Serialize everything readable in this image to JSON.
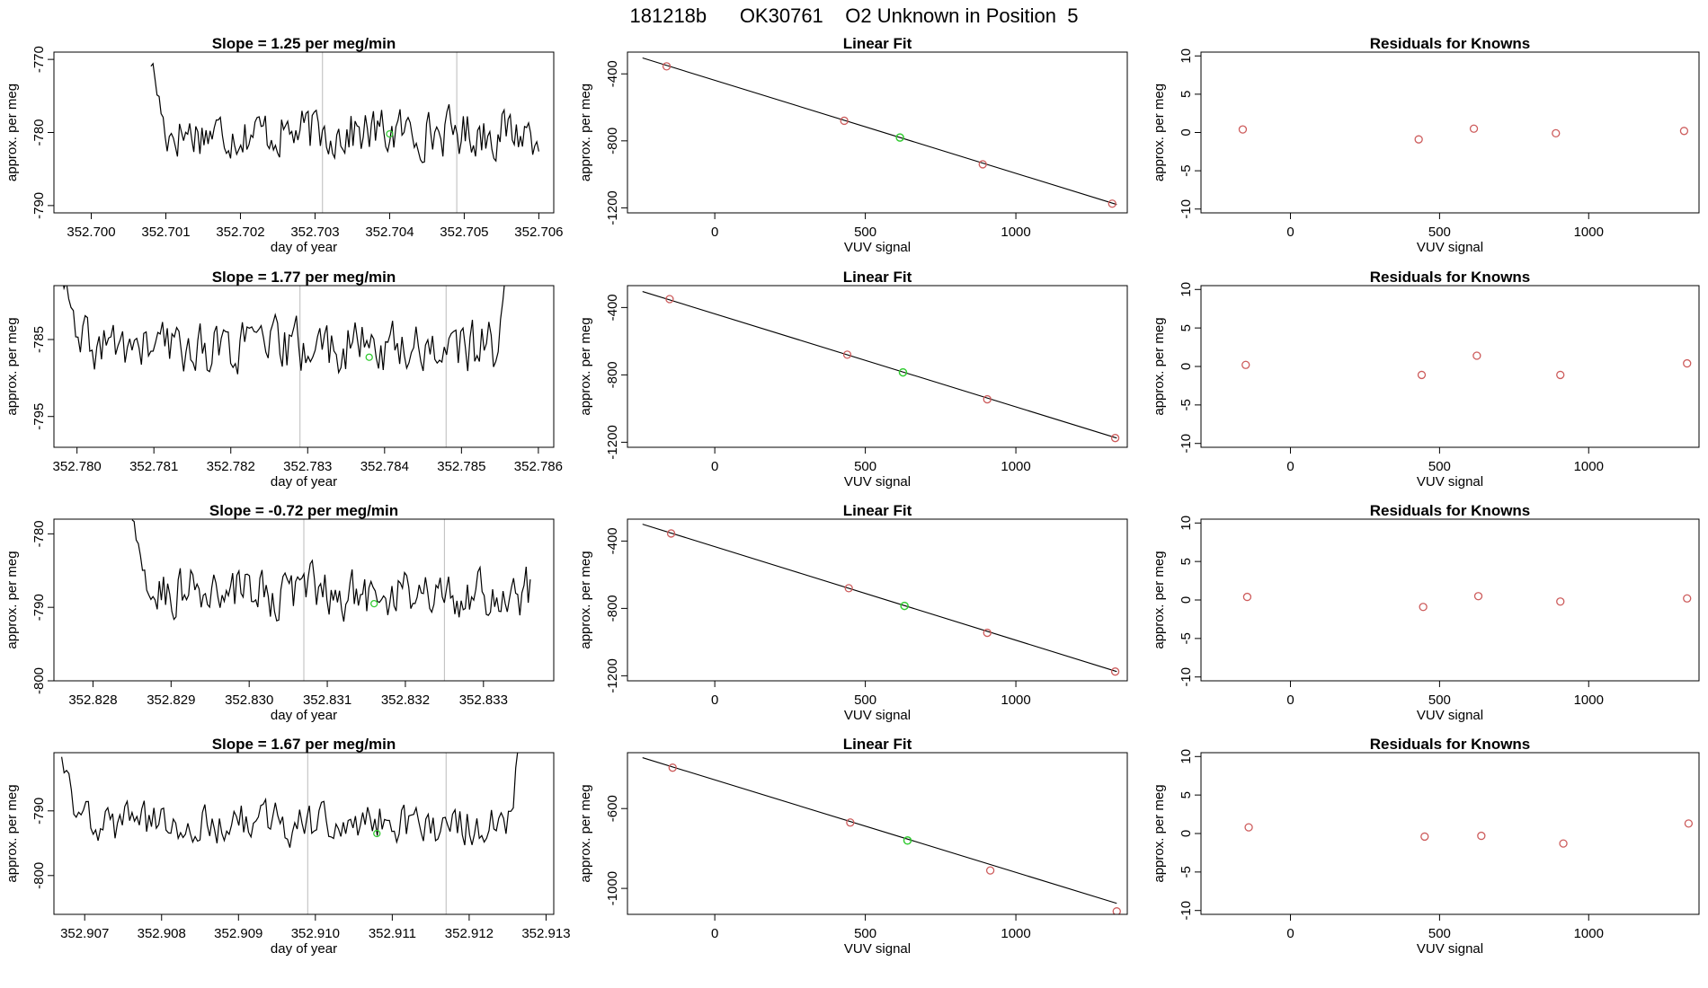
{
  "page_title": "181218b      OK30761    O2 Unknown in Position  5",
  "colors": {
    "line": "#000000",
    "known_marker": "#cd5c5c",
    "unknown_marker": "#33cc33",
    "event_line": "#bbbbbb",
    "frame": "#000000"
  },
  "chart_data": [
    {
      "panel": "timeseries",
      "row": 0,
      "type": "line",
      "title": "Slope =  1.25  per meg/min",
      "xlabel": "day of year",
      "ylabel": "approx. per meg",
      "xlim": [
        352.6995,
        352.7062
      ],
      "ylim": [
        -791,
        -769
      ],
      "xticks": [
        "352.700",
        "352.701",
        "352.702",
        "352.703",
        "352.704",
        "352.705",
        "352.706"
      ],
      "yticks": [
        "-790",
        "-780",
        "-770"
      ],
      "events": [
        352.7031,
        352.7049
      ],
      "x_range": [
        352.7008,
        352.706
      ],
      "y_base": -780,
      "noise_amp": 3.0,
      "unknown_point": [
        352.704,
        -780.2
      ]
    },
    {
      "panel": "fit",
      "row": 0,
      "type": "scatter",
      "title": "Linear Fit",
      "xlabel": "VUV signal",
      "ylabel": "approx. per meg",
      "xlim": [
        -290,
        1370
      ],
      "ylim": [
        -1230,
        -270
      ],
      "xticks": [
        "0",
        "500",
        "1000"
      ],
      "yticks": [
        "-400",
        "-800",
        "-1200"
      ],
      "fit_line": {
        "x": [
          -240,
          1335
        ],
        "y": [
          -305,
          -1180
        ]
      },
      "knowns": {
        "x": [
          -160,
          430,
          890,
          1320
        ],
        "y": [
          -355,
          -680,
          -940,
          -1175
        ]
      },
      "unknown": {
        "x": [
          615
        ],
        "y": [
          -780
        ]
      }
    },
    {
      "panel": "residuals",
      "row": 0,
      "type": "scatter",
      "title": "Residuals for Knowns",
      "xlabel": "VUV signal",
      "ylabel": "approx. per meg",
      "xlim": [
        -300,
        1370
      ],
      "ylim": [
        -10.5,
        10.5
      ],
      "xticks": [
        "0",
        "500",
        "1000"
      ],
      "yticks": [
        "10",
        "5",
        "0",
        "-5",
        "-10"
      ],
      "points": {
        "x": [
          -160,
          430,
          615,
          890,
          1320
        ],
        "y": [
          0.4,
          -0.9,
          0.5,
          -0.1,
          0.2
        ]
      }
    },
    {
      "panel": "timeseries",
      "row": 1,
      "type": "line",
      "title": "Slope =  1.77  per meg/min",
      "xlabel": "day of year",
      "ylabel": "approx. per meg",
      "xlim": [
        352.7797,
        352.7862
      ],
      "ylim": [
        -799,
        -778
      ],
      "xticks": [
        "352.780",
        "352.781",
        "352.782",
        "352.783",
        "352.784",
        "352.785",
        "352.786"
      ],
      "yticks": [
        "-795",
        "-785"
      ],
      "events": [
        352.7829,
        352.7848
      ],
      "x_range": [
        352.7798,
        352.7856
      ],
      "y_base": -786,
      "noise_amp": 3.2,
      "unknown_point": [
        352.7838,
        -787.3
      ]
    },
    {
      "panel": "fit",
      "row": 1,
      "type": "scatter",
      "title": "Linear Fit",
      "xlabel": "VUV signal",
      "ylabel": "approx. per meg",
      "xlim": [
        -290,
        1370
      ],
      "ylim": [
        -1230,
        -270
      ],
      "xticks": [
        "0",
        "500",
        "1000"
      ],
      "yticks": [
        "-400",
        "-800",
        "-1200"
      ],
      "fit_line": {
        "x": [
          -240,
          1335
        ],
        "y": [
          -305,
          -1175
        ]
      },
      "knowns": {
        "x": [
          -150,
          440,
          905,
          1330
        ],
        "y": [
          -350,
          -680,
          -945,
          -1175
        ]
      },
      "unknown": {
        "x": [
          625
        ],
        "y": [
          -785
        ]
      }
    },
    {
      "panel": "residuals",
      "row": 1,
      "type": "scatter",
      "title": "Residuals for Knowns",
      "xlabel": "VUV signal",
      "ylabel": "approx. per meg",
      "xlim": [
        -300,
        1370
      ],
      "ylim": [
        -10.5,
        10.5
      ],
      "xticks": [
        "0",
        "500",
        "1000"
      ],
      "yticks": [
        "10",
        "5",
        "0",
        "-5",
        "-10"
      ],
      "points": {
        "x": [
          -150,
          440,
          625,
          905,
          1330
        ],
        "y": [
          0.2,
          -1.1,
          1.4,
          -1.1,
          0.4
        ]
      }
    },
    {
      "panel": "timeseries",
      "row": 2,
      "type": "line",
      "title": "Slope =  -0.72  per meg/min",
      "xlabel": "day of year",
      "ylabel": "approx. per meg",
      "xlim": [
        352.8275,
        352.8339
      ],
      "ylim": [
        -800,
        -778
      ],
      "xticks": [
        "352.828",
        "352.829",
        "352.830",
        "352.831",
        "352.832",
        "352.833"
      ],
      "yticks": [
        "-800",
        "-790",
        "-780"
      ],
      "events": [
        352.8307,
        352.8325
      ],
      "x_range": [
        352.8285,
        352.8336
      ],
      "y_base": -788,
      "noise_amp": 3.2,
      "unknown_point": [
        352.8316,
        -789.5
      ]
    },
    {
      "panel": "fit",
      "row": 2,
      "type": "scatter",
      "title": "Linear Fit",
      "xlabel": "VUV signal",
      "ylabel": "approx. per meg",
      "xlim": [
        -290,
        1370
      ],
      "ylim": [
        -1230,
        -270
      ],
      "xticks": [
        "0",
        "500",
        "1000"
      ],
      "yticks": [
        "-400",
        "-800",
        "-1200"
      ],
      "fit_line": {
        "x": [
          -240,
          1335
        ],
        "y": [
          -300,
          -1175
        ]
      },
      "knowns": {
        "x": [
          -145,
          445,
          905,
          1330
        ],
        "y": [
          -355,
          -680,
          -945,
          -1175
        ]
      },
      "unknown": {
        "x": [
          630
        ],
        "y": [
          -785
        ]
      }
    },
    {
      "panel": "residuals",
      "row": 2,
      "type": "scatter",
      "title": "Residuals for Knowns",
      "xlabel": "VUV signal",
      "ylabel": "approx. per meg",
      "xlim": [
        -300,
        1370
      ],
      "ylim": [
        -10.5,
        10.5
      ],
      "xticks": [
        "0",
        "500",
        "1000"
      ],
      "yticks": [
        "10",
        "5",
        "0",
        "-5",
        "-10"
      ],
      "points": {
        "x": [
          -145,
          445,
          630,
          905,
          1330
        ],
        "y": [
          0.4,
          -0.9,
          0.5,
          -0.2,
          0.2
        ]
      }
    },
    {
      "panel": "timeseries",
      "row": 3,
      "type": "line",
      "title": "Slope =  1.67  per meg/min",
      "xlabel": "day of year",
      "ylabel": "approx. per meg",
      "xlim": [
        352.9066,
        352.9131
      ],
      "ylim": [
        -806,
        -781
      ],
      "xticks": [
        "352.907",
        "352.908",
        "352.909",
        "352.910",
        "352.911",
        "352.912",
        "352.913"
      ],
      "yticks": [
        "-800",
        "-790"
      ],
      "events": [
        352.9099,
        352.9117
      ],
      "x_range": [
        352.9067,
        352.9127
      ],
      "y_base": -792,
      "noise_amp": 3.0,
      "unknown_point": [
        352.9108,
        -793.5
      ]
    },
    {
      "panel": "fit",
      "row": 3,
      "type": "scatter",
      "title": "Linear Fit",
      "xlabel": "VUV signal",
      "ylabel": "approx. per meg",
      "xlim": [
        -290,
        1370
      ],
      "ylim": [
        -1130,
        -320
      ],
      "xticks": [
        "0",
        "500",
        "1000"
      ],
      "yticks": [
        "-600",
        "-1000"
      ],
      "fit_line": {
        "x": [
          -240,
          1335
        ],
        "y": [
          -345,
          -1075
        ]
      },
      "knowns": {
        "x": [
          -140,
          450,
          915,
          1335
        ],
        "y": [
          -395,
          -670,
          -910,
          -1115
        ]
      },
      "unknown": {
        "x": [
          640
        ],
        "y": [
          -760
        ]
      }
    },
    {
      "panel": "residuals",
      "row": 3,
      "type": "scatter",
      "title": "Residuals for Knowns",
      "xlabel": "VUV signal",
      "ylabel": "approx. per meg",
      "xlim": [
        -300,
        1370
      ],
      "ylim": [
        -10.5,
        10.5
      ],
      "xticks": [
        "0",
        "500",
        "1000"
      ],
      "yticks": [
        "10",
        "5",
        "0",
        "-5",
        "-10"
      ],
      "points": {
        "x": [
          -140,
          450,
          640,
          915,
          1335
        ],
        "y": [
          0.8,
          -0.4,
          -0.3,
          -1.3,
          1.3
        ]
      }
    }
  ]
}
